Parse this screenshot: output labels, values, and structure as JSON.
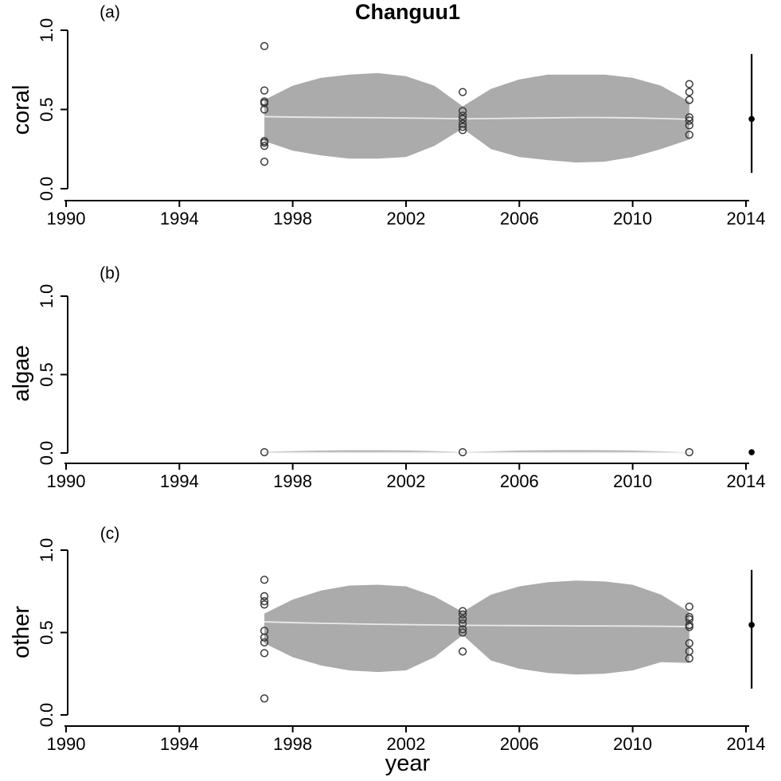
{
  "title": "Changuu1",
  "xlabel": "year",
  "colors": {
    "band": "#ababab",
    "median_line": "#e9e9e9",
    "point_stroke": "#3a3a3a",
    "survey": "#000000",
    "axis": "#000000"
  },
  "chart_data": [
    {
      "type": "area",
      "panel_label": "(a)",
      "ylabel": "coral",
      "xlim": [
        1990,
        2014
      ],
      "ylim": [
        0,
        1
      ],
      "x_ticks": [
        1990,
        1994,
        1998,
        2002,
        2006,
        2010,
        2014
      ],
      "y_ticks": [
        {
          "value": 0,
          "label": "0.0"
        },
        {
          "value": 0.5,
          "label": "0.5"
        },
        {
          "value": 1,
          "label": "1.0"
        }
      ],
      "band": {
        "x": [
          1997,
          1998,
          1999,
          2000,
          2001,
          2002,
          2003,
          2004,
          2005,
          2006,
          2007,
          2008,
          2009,
          2010,
          2011,
          2012
        ],
        "upper": [
          0.56,
          0.65,
          0.7,
          0.72,
          0.73,
          0.71,
          0.65,
          0.52,
          0.63,
          0.69,
          0.72,
          0.72,
          0.72,
          0.7,
          0.65,
          0.55
        ],
        "lower": [
          0.3,
          0.24,
          0.21,
          0.19,
          0.19,
          0.2,
          0.27,
          0.38,
          0.25,
          0.2,
          0.18,
          0.165,
          0.17,
          0.2,
          0.25,
          0.31
        ]
      },
      "median": {
        "x": [
          1997,
          1998,
          1999,
          2000,
          2001,
          2002,
          2003,
          2004,
          2005,
          2006,
          2007,
          2008,
          2009,
          2010,
          2011,
          2012
        ],
        "y": [
          0.455,
          0.452,
          0.45,
          0.449,
          0.448,
          0.446,
          0.444,
          0.441,
          0.443,
          0.445,
          0.447,
          0.449,
          0.449,
          0.447,
          0.443,
          0.438
        ]
      },
      "observations": [
        {
          "year": 1997,
          "values": [
            0.9,
            0.62,
            0.55,
            0.54,
            0.5,
            0.3,
            0.29,
            0.27,
            0.17
          ]
        },
        {
          "year": 2004,
          "values": [
            0.61,
            0.49,
            0.46,
            0.44,
            0.41,
            0.39,
            0.37
          ]
        },
        {
          "year": 2012,
          "values": [
            0.66,
            0.61,
            0.56,
            0.45,
            0.43,
            0.4,
            0.34
          ]
        }
      ],
      "survey": {
        "year": 2014.2,
        "mean": 0.44,
        "ci_low": 0.1,
        "ci_high": 0.85
      }
    },
    {
      "type": "area",
      "panel_label": "(b)",
      "ylabel": "algae",
      "xlim": [
        1990,
        2014
      ],
      "ylim": [
        0,
        1
      ],
      "x_ticks": [
        1990,
        1994,
        1998,
        2002,
        2006,
        2010,
        2014
      ],
      "y_ticks": [
        {
          "value": 0,
          "label": "0.0"
        },
        {
          "value": 0.5,
          "label": "0.5"
        },
        {
          "value": 1,
          "label": "1.0"
        }
      ],
      "band": {
        "x": [
          1997,
          1998,
          1999,
          2000,
          2001,
          2002,
          2003,
          2004,
          2005,
          2006,
          2007,
          2008,
          2009,
          2010,
          2011,
          2012
        ],
        "upper": [
          0.008,
          0.012,
          0.015,
          0.017,
          0.017,
          0.016,
          0.012,
          0.007,
          0.011,
          0.015,
          0.017,
          0.018,
          0.017,
          0.015,
          0.011,
          0.006
        ],
        "lower": [
          0.001,
          0.001,
          0.001,
          0.001,
          0.001,
          0.001,
          0.001,
          0.001,
          0.001,
          0.001,
          0.001,
          0.001,
          0.001,
          0.001,
          0.001,
          0.001
        ]
      },
      "median": {
        "x": [
          1997,
          1998,
          1999,
          2000,
          2001,
          2002,
          2003,
          2004,
          2005,
          2006,
          2007,
          2008,
          2009,
          2010,
          2011,
          2012
        ],
        "y": [
          0.003,
          0.003,
          0.003,
          0.003,
          0.003,
          0.003,
          0.003,
          0.003,
          0.003,
          0.003,
          0.003,
          0.003,
          0.003,
          0.003,
          0.003,
          0.003
        ]
      },
      "observations": [
        {
          "year": 1997,
          "values": [
            0.005
          ]
        },
        {
          "year": 2004,
          "values": [
            0.005
          ]
        },
        {
          "year": 2012,
          "values": [
            0.005
          ]
        }
      ],
      "survey": {
        "year": 2014.2,
        "mean": 0.005,
        "ci_low": 0.002,
        "ci_high": 0.009
      }
    },
    {
      "type": "area",
      "panel_label": "(c)",
      "ylabel": "other",
      "xlim": [
        1990,
        2014
      ],
      "ylim": [
        0,
        1
      ],
      "x_ticks": [
        1990,
        1994,
        1998,
        2002,
        2006,
        2010,
        2014
      ],
      "y_ticks": [
        {
          "value": 0,
          "label": "0.0"
        },
        {
          "value": 0.5,
          "label": "0.5"
        },
        {
          "value": 1,
          "label": "1.0"
        }
      ],
      "band": {
        "x": [
          1997,
          1998,
          1999,
          2000,
          2001,
          2002,
          2003,
          2004,
          2005,
          2006,
          2007,
          2008,
          2009,
          2010,
          2011,
          2012
        ],
        "upper": [
          0.615,
          0.7,
          0.755,
          0.785,
          0.79,
          0.78,
          0.72,
          0.625,
          0.73,
          0.78,
          0.805,
          0.815,
          0.81,
          0.79,
          0.73,
          0.625
        ],
        "lower": [
          0.435,
          0.35,
          0.3,
          0.27,
          0.26,
          0.27,
          0.35,
          0.485,
          0.33,
          0.28,
          0.255,
          0.245,
          0.25,
          0.27,
          0.32,
          0.315
        ]
      },
      "median": {
        "x": [
          1997,
          1998,
          1999,
          2000,
          2001,
          2002,
          2003,
          2004,
          2005,
          2006,
          2007,
          2008,
          2009,
          2010,
          2011,
          2012
        ],
        "y": [
          0.565,
          0.56,
          0.556,
          0.553,
          0.55,
          0.548,
          0.546,
          0.544,
          0.543,
          0.542,
          0.541,
          0.54,
          0.54,
          0.539,
          0.538,
          0.536
        ]
      },
      "observations": [
        {
          "year": 1997,
          "values": [
            0.82,
            0.72,
            0.69,
            0.67,
            0.51,
            0.47,
            0.44,
            0.375,
            0.1
          ]
        },
        {
          "year": 2004,
          "values": [
            0.63,
            0.61,
            0.58,
            0.555,
            0.52,
            0.5,
            0.385
          ]
        },
        {
          "year": 2012,
          "values": [
            0.657,
            0.594,
            0.58,
            0.546,
            0.534,
            0.435,
            0.386,
            0.343
          ]
        }
      ],
      "survey": {
        "year": 2014.2,
        "mean": 0.546,
        "ci_low": 0.16,
        "ci_high": 0.88
      }
    }
  ]
}
